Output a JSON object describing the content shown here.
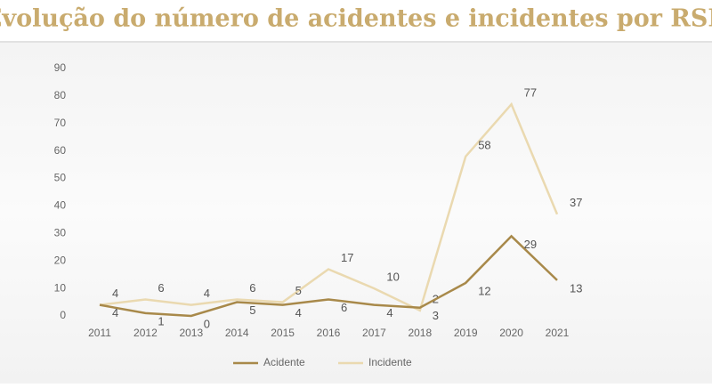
{
  "chart_data": {
    "type": "line",
    "title": "Evolução do número de acidentes e incidentes por RSB",
    "categories": [
      "2011",
      "2012",
      "2013",
      "2014",
      "2015",
      "2016",
      "2017",
      "2018",
      "2019",
      "2020",
      "2021"
    ],
    "series": [
      {
        "name": "Acidente",
        "color": "#a8894a",
        "values": [
          4,
          1,
          0,
          5,
          4,
          6,
          4,
          3,
          12,
          29,
          13
        ]
      },
      {
        "name": "Incidente",
        "color": "#ead9b0",
        "values": [
          4,
          6,
          4,
          6,
          5,
          17,
          10,
          2,
          58,
          77,
          37
        ]
      }
    ],
    "ylim": [
      0,
      90
    ],
    "yticks": [
      0,
      10,
      20,
      30,
      40,
      50,
      60,
      70,
      80,
      90
    ],
    "grid": false,
    "legend": "bottom",
    "data_labels": true
  }
}
